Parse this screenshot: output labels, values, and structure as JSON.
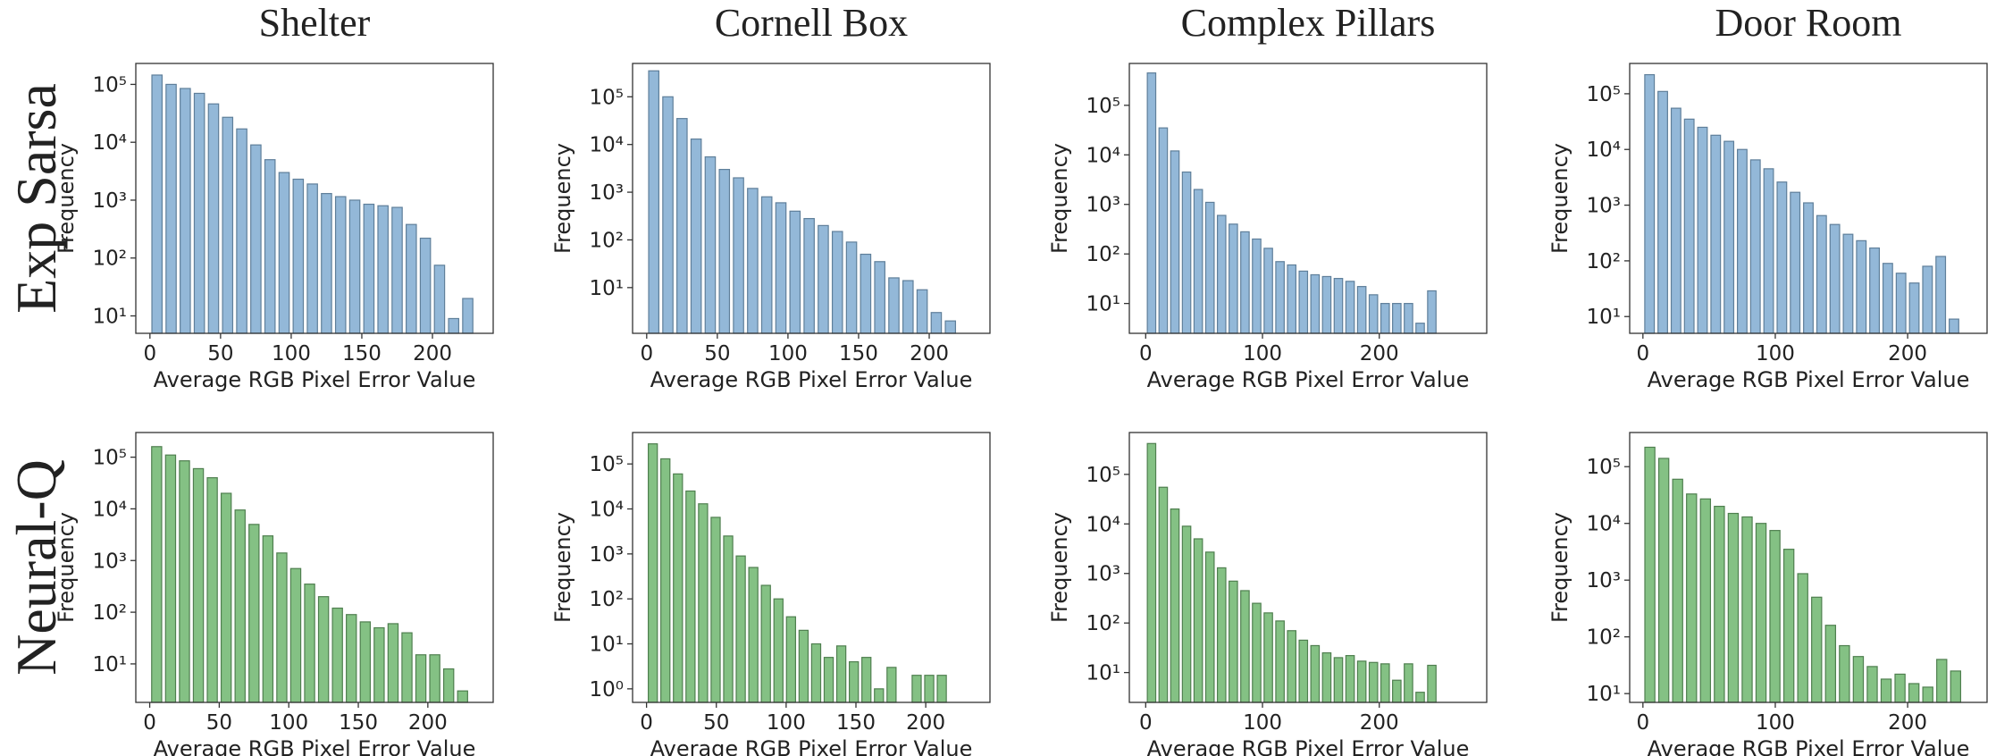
{
  "columns": [
    "Shelter",
    "Cornell Box",
    "Complex Pillars",
    "Door Room"
  ],
  "rows": [
    "Exp Sarsa",
    "Neural-Q"
  ],
  "chart_data": [
    {
      "type": "histogram",
      "xlabel": "Average RGB Pixel Error Value",
      "ylabel": "Frequency",
      "log": true,
      "color": "#93b8d8",
      "edgecolor": "#5f7f9a",
      "bins": [
        0,
        10,
        20,
        30,
        40,
        50,
        60,
        70,
        80,
        90,
        100,
        110,
        120,
        130,
        140,
        150,
        160,
        170,
        180,
        190,
        200,
        210,
        220,
        230
      ],
      "values": [
        145000,
        100000,
        85000,
        70000,
        46000,
        27000,
        17000,
        9000,
        5000,
        3000,
        2300,
        1900,
        1300,
        1150,
        1000,
        850,
        800,
        750,
        380,
        220,
        75,
        9,
        20
      ],
      "xlim": [
        -10,
        243
      ],
      "xticks": [
        0,
        50,
        100,
        150,
        200
      ],
      "ylim": [
        5,
        230000
      ],
      "yticks": [
        {
          "value": 10,
          "label": "10¹"
        },
        {
          "value": 100,
          "label": "10²"
        },
        {
          "value": 1000,
          "label": "10³"
        },
        {
          "value": 10000,
          "label": "10⁴"
        },
        {
          "value": 100000,
          "label": "10⁵"
        }
      ]
    },
    {
      "type": "histogram",
      "xlabel": "Average RGB Pixel Error Value",
      "ylabel": "Frequency",
      "log": true,
      "color": "#93b8d8",
      "edgecolor": "#5f7f9a",
      "bins": [
        0,
        10,
        20,
        30,
        40,
        50,
        60,
        70,
        80,
        90,
        100,
        110,
        120,
        130,
        140,
        150,
        160,
        170,
        180,
        190,
        200,
        210,
        220
      ],
      "values": [
        350000,
        100000,
        35000,
        13000,
        5500,
        3000,
        2000,
        1200,
        800,
        600,
        400,
        280,
        200,
        150,
        90,
        50,
        35,
        16,
        14,
        9,
        3,
        2
      ],
      "xlim": [
        -10,
        243
      ],
      "xticks": [
        0,
        50,
        100,
        150,
        200
      ],
      "ylim": [
        1.1,
        500000
      ],
      "yticks": [
        {
          "value": 10,
          "label": "10¹"
        },
        {
          "value": 100,
          "label": "10²"
        },
        {
          "value": 1000,
          "label": "10³"
        },
        {
          "value": 10000,
          "label": "10⁴"
        },
        {
          "value": 100000,
          "label": "10⁵"
        }
      ]
    },
    {
      "type": "histogram",
      "xlabel": "Average RGB Pixel Error Value",
      "ylabel": "Frequency",
      "log": true,
      "color": "#93b8d8",
      "edgecolor": "#5f7f9a",
      "bins": [
        0,
        10,
        20,
        30,
        40,
        50,
        60,
        70,
        80,
        90,
        100,
        110,
        120,
        130,
        140,
        150,
        160,
        170,
        180,
        190,
        200,
        210,
        220,
        230,
        240,
        250
      ],
      "values": [
        450000,
        35000,
        12000,
        4500,
        2000,
        1100,
        600,
        400,
        280,
        200,
        130,
        70,
        60,
        45,
        38,
        35,
        32,
        28,
        22,
        15,
        10,
        10,
        10,
        4,
        18
      ],
      "xlim": [
        -14,
        292
      ],
      "xticks": [
        0,
        100,
        200
      ],
      "ylim": [
        2.5,
        700000
      ],
      "yticks": [
        {
          "value": 10,
          "label": "10¹"
        },
        {
          "value": 100,
          "label": "10²"
        },
        {
          "value": 1000,
          "label": "10³"
        },
        {
          "value": 10000,
          "label": "10⁴"
        },
        {
          "value": 100000,
          "label": "10⁵"
        }
      ]
    },
    {
      "type": "histogram",
      "xlabel": "Average RGB Pixel Error Value",
      "ylabel": "Frequency",
      "log": true,
      "color": "#93b8d8",
      "edgecolor": "#5f7f9a",
      "bins": [
        0,
        10,
        20,
        30,
        40,
        50,
        60,
        70,
        80,
        90,
        100,
        110,
        120,
        130,
        140,
        150,
        160,
        170,
        180,
        190,
        200,
        210,
        220,
        230,
        240
      ],
      "values": [
        220000,
        110000,
        55000,
        35000,
        25000,
        18000,
        14000,
        10000,
        6500,
        4500,
        2600,
        1700,
        1100,
        650,
        450,
        300,
        230,
        170,
        90,
        60,
        40,
        80,
        120,
        9
      ],
      "xlim": [
        -10,
        260
      ],
      "xticks": [
        0,
        100,
        200
      ],
      "ylim": [
        5,
        350000
      ],
      "yticks": [
        {
          "value": 10,
          "label": "10¹"
        },
        {
          "value": 100,
          "label": "10²"
        },
        {
          "value": 1000,
          "label": "10³"
        },
        {
          "value": 10000,
          "label": "10⁴"
        },
        {
          "value": 100000,
          "label": "10⁵"
        }
      ]
    },
    {
      "type": "histogram",
      "xlabel": "Average RGB Pixel Error Value",
      "ylabel": "Frequency",
      "log": true,
      "color": "#84c184",
      "edgecolor": "#4f7f4f",
      "bins": [
        0,
        10,
        20,
        30,
        40,
        50,
        60,
        70,
        80,
        90,
        100,
        110,
        120,
        130,
        140,
        150,
        160,
        170,
        180,
        190,
        200,
        210,
        220,
        230
      ],
      "values": [
        160000,
        110000,
        85000,
        60000,
        40000,
        20000,
        9500,
        5000,
        3000,
        1400,
        700,
        350,
        200,
        120,
        90,
        65,
        50,
        60,
        40,
        15,
        15,
        8,
        3
      ],
      "xlim": [
        -10,
        247
      ],
      "xticks": [
        0,
        50,
        100,
        150,
        200
      ],
      "ylim": [
        1.8,
        300000
      ],
      "yticks": [
        {
          "value": 10,
          "label": "10¹"
        },
        {
          "value": 100,
          "label": "10²"
        },
        {
          "value": 1000,
          "label": "10³"
        },
        {
          "value": 10000,
          "label": "10⁴"
        },
        {
          "value": 100000,
          "label": "10⁵"
        }
      ]
    },
    {
      "type": "histogram",
      "xlabel": "Average RGB Pixel Error Value",
      "ylabel": "Frequency",
      "log": true,
      "color": "#84c184",
      "edgecolor": "#4f7f4f",
      "bins": [
        0,
        9,
        18,
        27,
        36,
        45,
        54,
        63,
        72,
        81,
        90,
        99,
        108,
        117,
        126,
        135,
        144,
        153,
        162,
        171,
        180,
        189,
        198,
        207,
        216
      ],
      "values": [
        280000,
        130000,
        60000,
        25000,
        13000,
        6500,
        2500,
        900,
        500,
        200,
        100,
        40,
        20,
        10,
        5,
        9,
        4,
        5,
        1,
        3,
        0,
        2,
        2,
        2
      ],
      "xlim": [
        -10,
        246
      ],
      "xticks": [
        0,
        50,
        100,
        150,
        200
      ],
      "ylim": [
        0.5,
        500000
      ],
      "yticks": [
        {
          "value": 1,
          "label": "10⁰"
        },
        {
          "value": 10,
          "label": "10¹"
        },
        {
          "value": 100,
          "label": "10²"
        },
        {
          "value": 1000,
          "label": "10³"
        },
        {
          "value": 10000,
          "label": "10⁴"
        },
        {
          "value": 100000,
          "label": "10⁵"
        }
      ]
    },
    {
      "type": "histogram",
      "xlabel": "Average RGB Pixel Error Value",
      "ylabel": "Frequency",
      "log": true,
      "color": "#84c184",
      "edgecolor": "#4f7f4f",
      "bins": [
        0,
        10,
        20,
        30,
        40,
        50,
        60,
        70,
        80,
        90,
        100,
        110,
        120,
        130,
        140,
        150,
        160,
        170,
        180,
        190,
        200,
        210,
        220,
        230,
        240,
        250
      ],
      "values": [
        420000,
        55000,
        20000,
        9000,
        5000,
        2700,
        1300,
        700,
        450,
        250,
        160,
        110,
        70,
        45,
        35,
        25,
        20,
        22,
        17,
        16,
        15,
        7,
        15,
        4,
        14
      ],
      "xlim": [
        -14,
        292
      ],
      "xticks": [
        0,
        100,
        200
      ],
      "ylim": [
        2.5,
        700000
      ],
      "yticks": [
        {
          "value": 10,
          "label": "10¹"
        },
        {
          "value": 100,
          "label": "10²"
        },
        {
          "value": 1000,
          "label": "10³"
        },
        {
          "value": 10000,
          "label": "10⁴"
        },
        {
          "value": 100000,
          "label": "10⁵"
        }
      ]
    },
    {
      "type": "histogram",
      "xlabel": "Average RGB Pixel Error Value",
      "ylabel": "Frequency",
      "log": true,
      "color": "#84c184",
      "edgecolor": "#4f7f4f",
      "bins": [
        0,
        10.5,
        21,
        31.5,
        42,
        52.5,
        63,
        73.5,
        84,
        94.5,
        105,
        115.5,
        126,
        136.5,
        147,
        157.5,
        168,
        178.5,
        189,
        199.5,
        210,
        220.5,
        231,
        241.5
      ],
      "values": [
        220000,
        140000,
        60000,
        33000,
        27000,
        20000,
        15000,
        13000,
        10000,
        7500,
        3500,
        1300,
        500,
        160,
        70,
        45,
        30,
        18,
        22,
        15,
        13,
        40,
        25
      ],
      "xlim": [
        -10,
        260
      ],
      "xticks": [
        0,
        100,
        200
      ],
      "ylim": [
        7,
        400000
      ],
      "yticks": [
        {
          "value": 10,
          "label": "10¹"
        },
        {
          "value": 100,
          "label": "10²"
        },
        {
          "value": 1000,
          "label": "10³"
        },
        {
          "value": 10000,
          "label": "10⁴"
        },
        {
          "value": 100000,
          "label": "10⁵"
        }
      ]
    }
  ]
}
